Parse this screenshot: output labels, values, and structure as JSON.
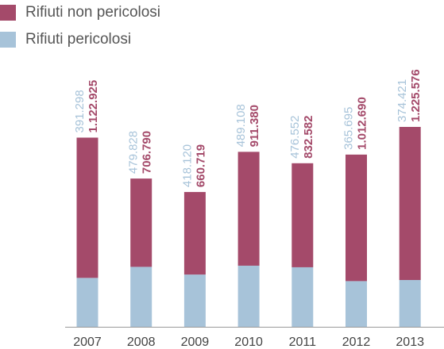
{
  "chart_data": {
    "type": "stacked-bar",
    "categories": [
      "2007",
      "2008",
      "2009",
      "2010",
      "2011",
      "2012",
      "2013"
    ],
    "series": [
      {
        "name": "Rifiuti non pericolosi",
        "color": "#a44a6a",
        "values": [
          1122925,
          706790,
          660719,
          911380,
          832582,
          1012690,
          1225576
        ],
        "value_labels": [
          "1.122.925",
          "706.790",
          "660.719",
          "911.380",
          "832.582",
          "1.012.690",
          "1.225.576"
        ]
      },
      {
        "name": "Rifiuti pericolosi",
        "color": "#a7c3d9",
        "values": [
          391298,
          479828,
          418120,
          489108,
          476552,
          365695,
          374421
        ],
        "value_labels": [
          "391.298",
          "479.828",
          "418.120",
          "489.108",
          "476.552",
          "365.695",
          "374.421"
        ]
      }
    ]
  }
}
